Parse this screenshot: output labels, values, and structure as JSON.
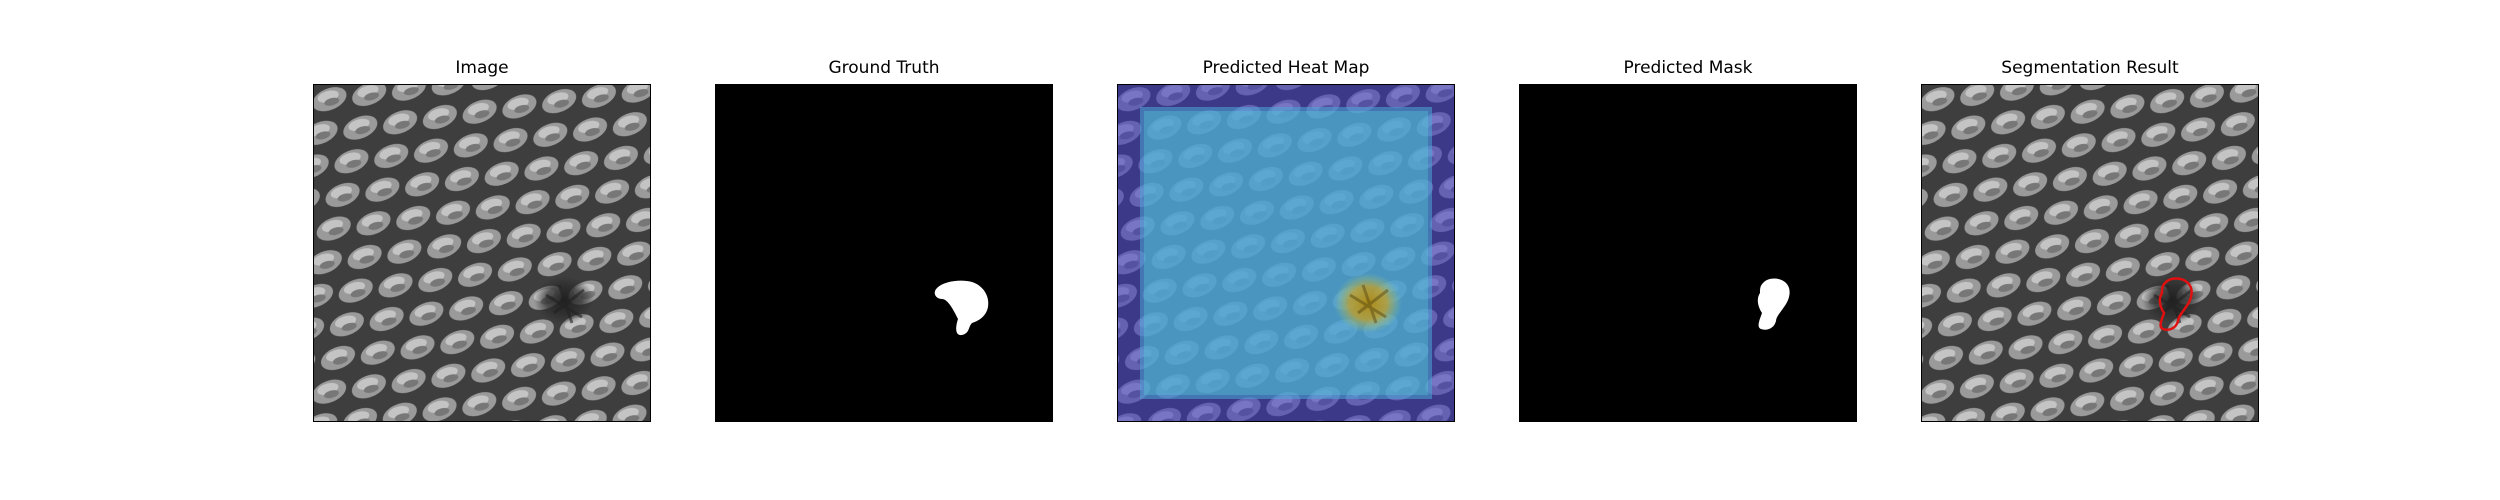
{
  "figure": {
    "panels": [
      {
        "title": "Image"
      },
      {
        "title": "Ground Truth"
      },
      {
        "title": "Predicted Heat Map"
      },
      {
        "title": "Predicted Mask"
      },
      {
        "title": "Segmentation Result"
      }
    ]
  },
  "colors": {
    "background": "#ffffff",
    "mask_background": "#000000",
    "mask_foreground": "#ffffff",
    "contour": "#e01010",
    "heatmap_low": "#4a45c0",
    "heatmap_mid": "#57c8d6",
    "heatmap_high": "#c9a020",
    "texture_base": "#8a8a8a",
    "texture_dark": "#3a3a3a"
  }
}
